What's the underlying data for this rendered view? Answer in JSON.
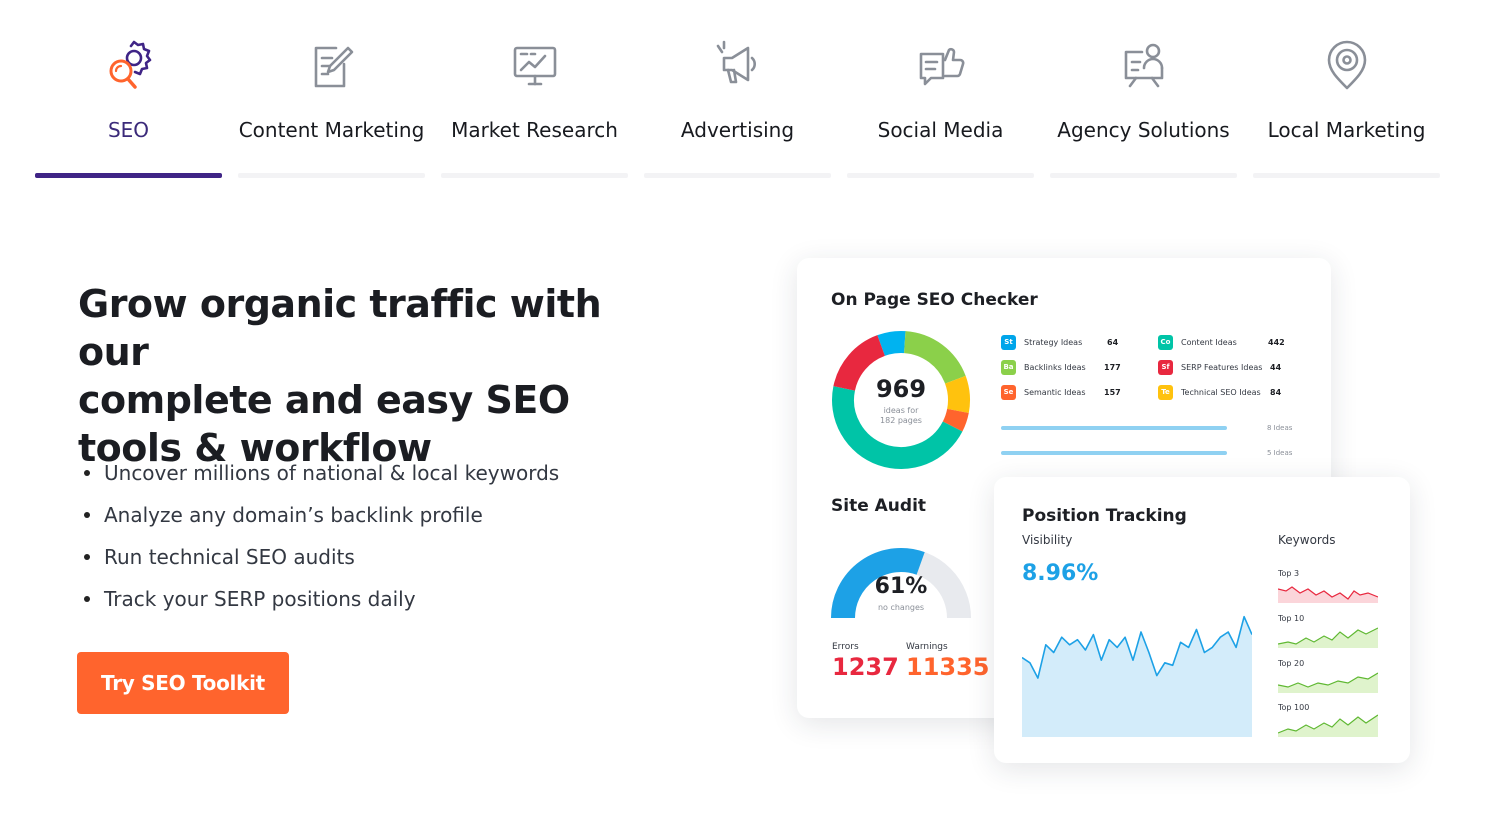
{
  "tabs": [
    {
      "label": "SEO",
      "icon": "seo-gear-magnifier-icon",
      "active": true
    },
    {
      "label": "Content Marketing",
      "icon": "document-pencil-icon",
      "active": false
    },
    {
      "label": "Market Research",
      "icon": "monitor-chart-icon",
      "active": false
    },
    {
      "label": "Advertising",
      "icon": "megaphone-icon",
      "active": false
    },
    {
      "label": "Social Media",
      "icon": "thumbs-up-icon",
      "active": false
    },
    {
      "label": "Agency Solutions",
      "icon": "presenter-board-icon",
      "active": false
    },
    {
      "label": "Local Marketing",
      "icon": "location-pin-icon",
      "active": false
    }
  ],
  "hero": {
    "title_lines": [
      "Grow organic traffic with our",
      "complete and easy SEO",
      "tools & workflow"
    ],
    "features": [
      "Uncover millions of national & local keywords",
      "Analyze any domain’s backlink profile",
      "Run technical SEO audits",
      "Track your SERP positions daily"
    ],
    "cta_label": "Try SEO Toolkit"
  },
  "colors": {
    "accent_orange": "#ff642d",
    "tab_active": "#3f2486",
    "visibility_blue": "#1da1e6",
    "errors_red": "#e8283f",
    "warnings_orange": "#ff642d"
  },
  "on_page": {
    "title": "On Page SEO Checker",
    "total": "969",
    "total_sub_1": "ideas for",
    "total_sub_2": "182 pages",
    "donut_segments": [
      {
        "value": 64,
        "color": "#00b3f0"
      },
      {
        "value": 177,
        "color": "#8bd04a"
      },
      {
        "value": 84,
        "color": "#ffc20e"
      },
      {
        "value": 44,
        "color": "#ff642d"
      },
      {
        "value": 442,
        "color": "#00c4a7"
      },
      {
        "value": 157,
        "color": "#e8283f"
      }
    ],
    "ideas": [
      {
        "abbr": "St",
        "name": "Strategy Ideas",
        "count": "64",
        "color": "#00a5ea"
      },
      {
        "abbr": "Ba",
        "name": "Backlinks Ideas",
        "count": "177",
        "color": "#8bd04a"
      },
      {
        "abbr": "Se",
        "name": "Semantic Ideas",
        "count": "157",
        "color": "#ff642d"
      },
      {
        "abbr": "Co",
        "name": "Content Ideas",
        "count": "442",
        "color": "#00c4a7"
      },
      {
        "abbr": "Sf",
        "name": "SERP Features Ideas",
        "count": "44",
        "color": "#e8283f"
      },
      {
        "abbr": "Te",
        "name": "Technical SEO Ideas",
        "count": "84",
        "color": "#ffc20e"
      }
    ],
    "progress_labels": [
      "8 Ideas",
      "5 Ideas"
    ]
  },
  "site_audit": {
    "title": "Site Audit",
    "percent": "61%",
    "percent_value": 61,
    "sub": "no changes",
    "errors_label": "Errors",
    "errors_value": "1237",
    "warnings_label": "Warnings",
    "warnings_value": "11335"
  },
  "position_tracking": {
    "title": "Position Tracking",
    "visibility_label": "Visibility",
    "visibility_value": "8.96%",
    "keywords_label": "Keywords",
    "keyword_groups": [
      "Top 3",
      "Top 10",
      "Top 20",
      "Top 100"
    ],
    "visibility_series": [
      62,
      58,
      46,
      72,
      66,
      78,
      72,
      76,
      68,
      80,
      60,
      76,
      70,
      78,
      60,
      82,
      66,
      48,
      58,
      56,
      74,
      70,
      84,
      66,
      70,
      78,
      82,
      70,
      94,
      80
    ]
  }
}
